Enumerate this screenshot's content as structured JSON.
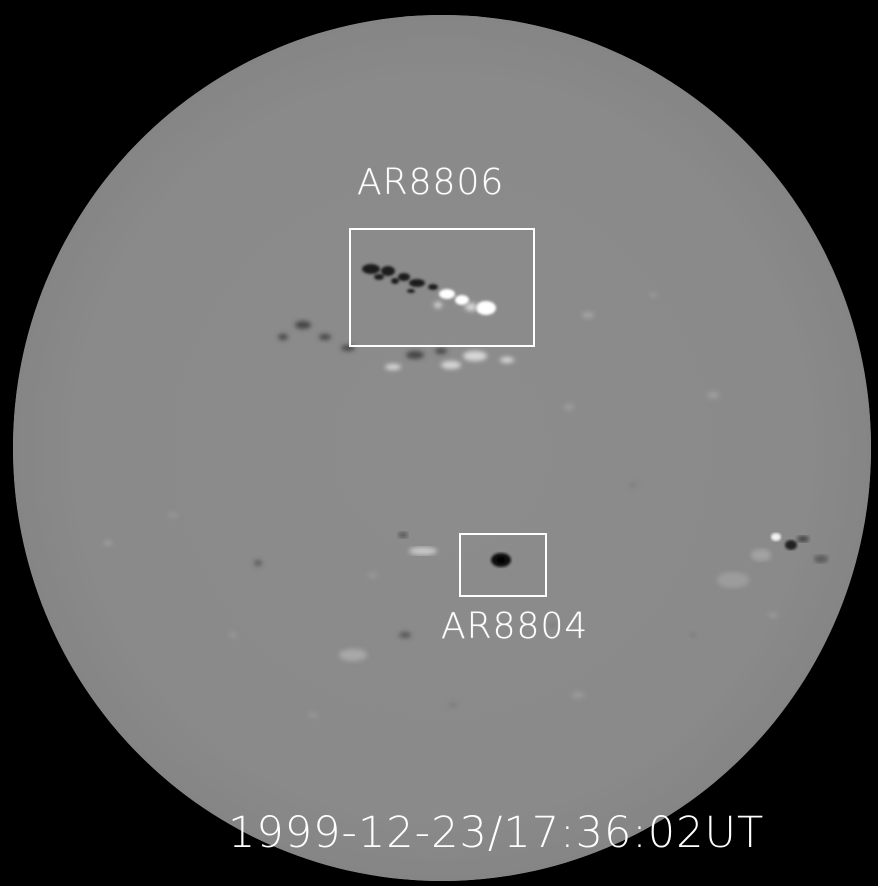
{
  "image": {
    "subject": "solar magnetogram",
    "colors": {
      "background": "#000000",
      "disk": "#8a8a8a",
      "annotation": "#ffffff"
    }
  },
  "regions": [
    {
      "label": "AR8806"
    },
    {
      "label": "AR8804"
    }
  ],
  "timestamp": "1999-12-23/17:36:02UT"
}
